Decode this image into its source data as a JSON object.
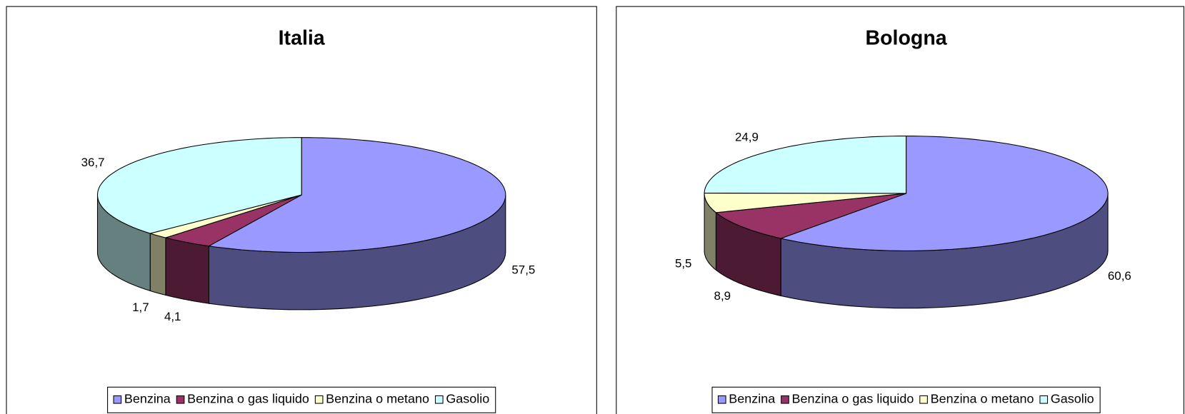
{
  "chart_data": [
    {
      "type": "pie",
      "title": "Italia",
      "categories": [
        "Benzina",
        "Benzina o gas liquido",
        "Benzina o metano",
        "Gasolio"
      ],
      "values": [
        57.5,
        4.1,
        1.7,
        36.7
      ],
      "value_labels": [
        "57,5",
        "4,1",
        "1,7",
        "36,7"
      ],
      "colors": [
        "#9999ff",
        "#993366",
        "#ffffcc",
        "#ccffff"
      ],
      "legend": "bottom"
    },
    {
      "type": "pie",
      "title": "Bologna",
      "categories": [
        "Benzina",
        "Benzina o gas liquido",
        "Benzina o metano",
        "Gasolio"
      ],
      "values": [
        60.6,
        8.9,
        5.5,
        24.9
      ],
      "value_labels": [
        "60,6",
        "8,9",
        "5,5",
        "24,9"
      ],
      "colors": [
        "#9999ff",
        "#993366",
        "#ffffcc",
        "#ccffff"
      ],
      "legend": "bottom"
    }
  ]
}
